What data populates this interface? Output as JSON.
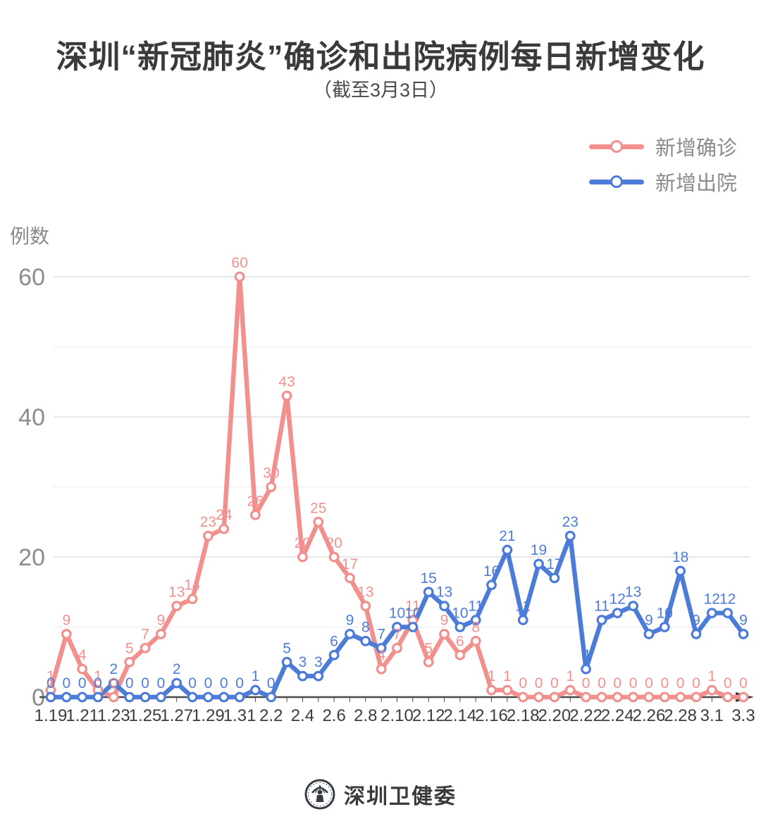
{
  "header": {
    "title": "深圳“新冠肺炎”确诊和出院病例每日新增变化",
    "subtitle": "（截至3月3日）"
  },
  "legend": {
    "items": [
      {
        "label": "新增确诊",
        "color": "#f2908e"
      },
      {
        "label": "新增出院",
        "color": "#4d7cd8"
      }
    ]
  },
  "chart_data": {
    "type": "line",
    "title": "深圳“新冠肺炎”确诊和出院病例每日新增变化",
    "subtitle": "（截至3月3日）",
    "ylabel": "例数",
    "xlabel": "",
    "ylim": [
      0,
      62
    ],
    "y_ticks": [
      0,
      20,
      40,
      60
    ],
    "grid_step": 10,
    "grid": "horizontal",
    "legend_position": "top-right",
    "x_label_every": 2,
    "x": [
      "1.19",
      "1.20",
      "1.21",
      "1.22",
      "1.23",
      "1.24",
      "1.25",
      "1.26",
      "1.27",
      "1.28",
      "1.29",
      "1.30",
      "1.31",
      "2.1",
      "2.2",
      "2.3",
      "2.4",
      "2.5",
      "2.6",
      "2.7",
      "2.8",
      "2.9",
      "2.10",
      "2.11",
      "2.12",
      "2.13",
      "2.14",
      "2.15",
      "2.16",
      "2.17",
      "2.18",
      "2.19",
      "2.20",
      "2.21",
      "2.22",
      "2.23",
      "2.24",
      "2.25",
      "2.26",
      "2.27",
      "2.28",
      "2.29",
      "3.1",
      "3.2",
      "3.3"
    ],
    "x_tick_labels": [
      "1.19",
      "1.21",
      "1.23",
      "1.25",
      "1.27",
      "1.29",
      "1.31",
      "2.2",
      "2.4",
      "2.6",
      "2.8",
      "2.10",
      "2.12",
      "2.14",
      "2.16",
      "2.18",
      "2.20",
      "2.22",
      "2.24",
      "2.26",
      "2.28",
      "3.1",
      "3.3"
    ],
    "series": [
      {
        "name": "新增确诊",
        "color": "#f2908e",
        "values": [
          1,
          9,
          4,
          1,
          0,
          5,
          7,
          9,
          13,
          14,
          23,
          24,
          60,
          26,
          30,
          43,
          20,
          25,
          20,
          17,
          13,
          4,
          7,
          11,
          5,
          9,
          6,
          8,
          1,
          1,
          0,
          0,
          0,
          1,
          0,
          0,
          0,
          0,
          0,
          0,
          0,
          0,
          1,
          0,
          0
        ]
      },
      {
        "name": "新增出院",
        "color": "#4d7cd8",
        "values": [
          0,
          0,
          0,
          0,
          2,
          0,
          0,
          0,
          2,
          0,
          0,
          0,
          0,
          1,
          0,
          5,
          3,
          3,
          6,
          9,
          8,
          7,
          10,
          10,
          15,
          13,
          10,
          11,
          16,
          21,
          11,
          19,
          17,
          23,
          4,
          11,
          12,
          13,
          9,
          10,
          18,
          9,
          12,
          12,
          9
        ]
      }
    ]
  },
  "footer": {
    "org_name": "深圳卫健委",
    "logo": "shenzhen-health-commission-seal"
  },
  "colors": {
    "confirmed": "#f2908e",
    "discharged": "#4d7cd8",
    "axis": "#4a4a4a",
    "grid_major": "#d9d9d9",
    "grid_minor": "#ececec",
    "y_tick_text": "#8c8c8c",
    "x_tick_text": "#3d3d3d",
    "title_text": "#3a3a3a"
  }
}
